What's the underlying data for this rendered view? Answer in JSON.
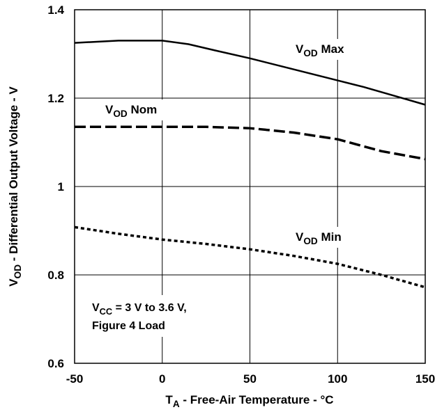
{
  "chart_data": {
    "type": "line",
    "xlabel": {
      "main": "T",
      "sub": "A",
      "rest": " - Free-Air Temperature - °C"
    },
    "ylabel": {
      "main": "V",
      "sub": "OD",
      "rest": " - Differential Output Voltage - V"
    },
    "xlim": [
      -50,
      150
    ],
    "ylim": [
      0.6,
      1.4
    ],
    "x_ticks": [
      -50,
      0,
      50,
      100,
      150
    ],
    "x_tick_labels": [
      "-50",
      "0",
      "50",
      "100",
      "150"
    ],
    "y_ticks": [
      0.6,
      0.8,
      1.0,
      1.2,
      1.4
    ],
    "y_tick_labels": [
      "0.6",
      "0.8",
      "1",
      "1.2",
      "1.4"
    ],
    "grid": true,
    "series": [
      {
        "name": "VOD Max",
        "label": {
          "main": "V",
          "sub": "OD",
          "rest": " Max"
        },
        "style": "solid",
        "color": "#000000",
        "x": [
          -50,
          -25,
          0,
          15,
          30,
          50,
          75,
          100,
          115,
          130,
          150
        ],
        "y": [
          1.325,
          1.33,
          1.33,
          1.322,
          1.308,
          1.29,
          1.265,
          1.24,
          1.225,
          1.208,
          1.185
        ]
      },
      {
        "name": "VOD Nom",
        "label": {
          "main": "V",
          "sub": "OD",
          "rest": " Nom"
        },
        "style": "dashed",
        "color": "#000000",
        "x": [
          -50,
          -25,
          0,
          25,
          50,
          75,
          100,
          125,
          150
        ],
        "y": [
          1.135,
          1.135,
          1.135,
          1.135,
          1.132,
          1.122,
          1.107,
          1.08,
          1.062
        ]
      },
      {
        "name": "VOD Min",
        "label": {
          "main": "V",
          "sub": "OD",
          "rest": " Min"
        },
        "style": "dotted",
        "color": "#000000",
        "x": [
          -50,
          -25,
          0,
          25,
          50,
          75,
          100,
          125,
          150
        ],
        "y": [
          0.908,
          0.893,
          0.88,
          0.87,
          0.858,
          0.843,
          0.825,
          0.8,
          0.772
        ]
      }
    ],
    "annotation": {
      "line1": {
        "main": "V",
        "sub": "CC",
        "rest": " = 3 V to 3.6 V,"
      },
      "line2": "Figure 4 Load"
    }
  }
}
